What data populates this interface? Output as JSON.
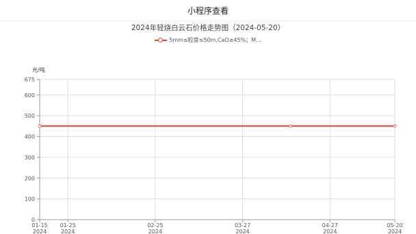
{
  "header": {
    "title": "小程序查看"
  },
  "colors": {
    "series": "#e8403c",
    "grid": "#dddddd",
    "axis": "#999999"
  },
  "chart_data": {
    "type": "line",
    "title": "2024年轻烧白云石价格走势图（2024-05-20）",
    "ylabel": "元/吨",
    "xlabel": "",
    "ylim": [
      0,
      675
    ],
    "yticks": [
      0,
      100,
      200,
      300,
      400,
      500,
      600,
      675
    ],
    "xticks": [
      {
        "date": "2024-01-15",
        "label": "01-15",
        "year": "2024"
      },
      {
        "date": "2024-01-25",
        "label": "01-25",
        "year": "2024"
      },
      {
        "date": "2024-02-25",
        "label": "02-25",
        "year": "2024"
      },
      {
        "date": "2024-03-27",
        "label": "03-27",
        "year": "2024"
      },
      {
        "date": "2024-04-27",
        "label": "04-27",
        "year": "2024"
      },
      {
        "date": "2024-05-20",
        "label": "05-20",
        "year": "2024"
      }
    ],
    "legend_position": "top-center",
    "grid": true,
    "series": [
      {
        "name": "5mm≤粒度≤50m,CaO≥45%；M...",
        "points": [
          {
            "x": "2024-01-15",
            "y": 450
          },
          {
            "x": "2024-04-13",
            "y": 450
          },
          {
            "x": "2024-05-20",
            "y": 450
          }
        ]
      }
    ]
  }
}
